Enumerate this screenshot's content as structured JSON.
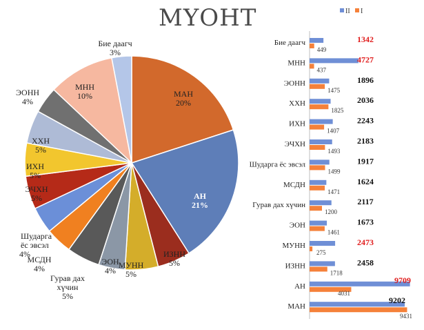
{
  "chart_data": [
    {
      "type": "pie",
      "title": "МҮОНТ",
      "start_angle_deg": 0,
      "slices": [
        {
          "label": "МАН",
          "value": 20,
          "pct_label": "20%",
          "color": "#d2692c"
        },
        {
          "label": "АН",
          "value": 21,
          "pct_label": "21%",
          "color": "#5e7eb8"
        },
        {
          "label": "ИЗНН",
          "value": 5,
          "pct_label": "5%",
          "color": "#9b2d1e"
        },
        {
          "label": "МУНН",
          "value": 5,
          "pct_label": "5%",
          "color": "#d4ad2a"
        },
        {
          "label": "ЭОН",
          "value": 4,
          "pct_label": "4%",
          "color": "#8b97a6"
        },
        {
          "label": "Гурав дах хүчин",
          "value": 5,
          "pct_label": "5%",
          "color": "#595959"
        },
        {
          "label": "МСДН",
          "value": 4,
          "pct_label": "4%",
          "color": "#f08020"
        },
        {
          "label": "Шударга ёс эвсэл",
          "value": 4,
          "pct_label": "4%",
          "color": "#6b8fd8"
        },
        {
          "label": "ЭЧХН",
          "value": 5,
          "pct_label": "5%",
          "color": "#b52a18"
        },
        {
          "label": "ИХН",
          "value": 5,
          "pct_label": "5%",
          "color": "#f2c62e"
        },
        {
          "label": "ХХН",
          "value": 5,
          "pct_label": "5%",
          "color": "#aebbd6"
        },
        {
          "label": "ЭОНН",
          "value": 4,
          "pct_label": "4%",
          "color": "#707070"
        },
        {
          "label": "МНН",
          "value": 10,
          "pct_label": "10%",
          "color": "#f6b8a0"
        },
        {
          "label": "Бие даагч",
          "value": 3,
          "pct_label": "3%",
          "color": "#b4c6e8"
        }
      ]
    },
    {
      "type": "bar",
      "orientation": "horizontal",
      "categories": [
        "Бие даагч",
        "МНН",
        "ЭОНН",
        "ХХН",
        "ИХН",
        "ЭЧХН",
        "Шударга ёс эвсэл",
        "МСДН",
        "Гурав дах хүчин",
        "ЭОН",
        "МУНН",
        "ИЗНН",
        "АН",
        "МАН"
      ],
      "series": [
        {
          "name": "II",
          "color": "#6f8fd6",
          "values": [
            1342,
            4727,
            1896,
            2036,
            2243,
            2183,
            1917,
            1624,
            2117,
            1673,
            2473,
            2458,
            9709,
            9202
          ]
        },
        {
          "name": "I",
          "color": "#f5813a",
          "values": [
            449,
            437,
            1475,
            1825,
            1407,
            1493,
            1499,
            1471,
            1200,
            1461,
            275,
            1718,
            4031,
            9431
          ]
        }
      ],
      "highlight_color": "#e01b1b",
      "highlighted_categories": [
        "Бие даагч",
        "МНН",
        "МУНН",
        "АН"
      ],
      "xlim": [
        0,
        10000
      ],
      "legend_position": "top"
    }
  ]
}
